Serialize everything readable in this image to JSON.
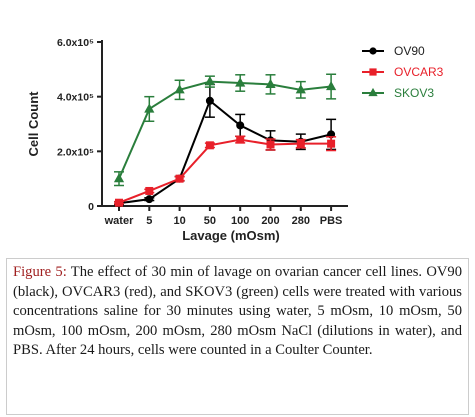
{
  "chart_data": {
    "type": "line",
    "categories": [
      "water",
      "5",
      "10",
      "50",
      "100",
      "200",
      "280",
      "PBS"
    ],
    "xlabel": "Lavage (mOsm)",
    "ylabel": "Cell Count",
    "ylim": [
      0,
      600000
    ],
    "yticks": [
      {
        "value": 0,
        "label": "0"
      },
      {
        "value": 200000,
        "label": "2.0x10⁵"
      },
      {
        "value": 400000,
        "label": "4.0x10⁵"
      },
      {
        "value": 600000,
        "label": "6.0x10⁵"
      }
    ],
    "legend_position": "top-right",
    "series": [
      {
        "name": "OV90",
        "color": "#000000",
        "marker": "circle",
        "values": [
          10000,
          25000,
          100000,
          385000,
          295000,
          240000,
          235000,
          262000
        ],
        "errors": [
          5000,
          5000,
          8000,
          60000,
          40000,
          35000,
          28000,
          55000
        ]
      },
      {
        "name": "OVCAR3",
        "color": "#e8202a",
        "marker": "square",
        "values": [
          12000,
          55000,
          100000,
          222000,
          243000,
          225000,
          228000,
          228000
        ],
        "errors": [
          4000,
          6000,
          7000,
          8000,
          12000,
          20000,
          15000,
          25000
        ]
      },
      {
        "name": "SKOV3",
        "color": "#2a7e3c",
        "marker": "triangle",
        "values": [
          100000,
          355000,
          425000,
          455000,
          450000,
          445000,
          425000,
          437000
        ],
        "errors": [
          25000,
          45000,
          35000,
          20000,
          30000,
          35000,
          30000,
          45000
        ]
      }
    ]
  },
  "caption": {
    "label": "Figure 5:",
    "text": " The effect of 30 min of lavage on ovarian cancer cell lines. OV90 (black), OVCAR3 (red), and SKOV3 (green) cells were treated with various concentrations saline for 30 minutes using water, 5 mOsm, 10 mOsm, 50 mOsm, 100 mOsm, 200 mOsm, 280 mOsm NaCl (dilutions in water), and PBS. After 24 hours, cells were counted in a Coulter Counter."
  }
}
